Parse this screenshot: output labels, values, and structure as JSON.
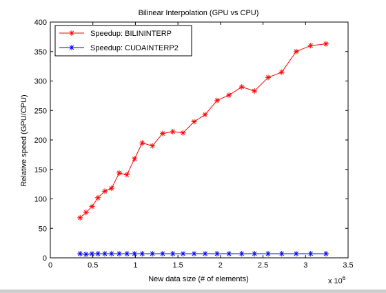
{
  "chart_data": {
    "type": "line",
    "title": "Bilinear Interpolation (GPU vs CPU)",
    "xlabel": "New data size (# of elements)",
    "ylabel": "Relative speed (GPU/CPU)",
    "x_multiplier_label": "x 10",
    "x_multiplier_exponent": "6",
    "xlim": [
      0,
      3.5
    ],
    "ylim": [
      0,
      400
    ],
    "xticks": [
      0,
      0.5,
      1,
      1.5,
      2,
      2.5,
      3,
      3.5
    ],
    "xtick_labels": [
      "0",
      "0.5",
      "1",
      "1.5",
      "2",
      "2.5",
      "3",
      "3.5"
    ],
    "yticks": [
      0,
      50,
      100,
      150,
      200,
      250,
      300,
      350,
      400
    ],
    "ytick_labels": [
      "0",
      "50",
      "100",
      "150",
      "200",
      "250",
      "300",
      "350",
      "400"
    ],
    "x": [
      0.35,
      0.42,
      0.49,
      0.56,
      0.64,
      0.72,
      0.81,
      0.9,
      0.99,
      1.08,
      1.2,
      1.32,
      1.44,
      1.56,
      1.69,
      1.82,
      1.96,
      2.1,
      2.25,
      2.4,
      2.56,
      2.72,
      2.89,
      3.06,
      3.24
    ],
    "series": [
      {
        "name": "Speedup: BILININTERP",
        "color": "#ff0000",
        "marker": "*",
        "values": [
          68,
          77,
          87,
          102,
          113,
          118,
          144,
          141,
          168,
          195,
          190,
          211,
          214,
          212,
          231,
          243,
          267,
          276,
          290,
          283,
          306,
          315,
          350,
          360,
          363
        ]
      },
      {
        "name": "Speedup: CUDAINTERP2",
        "color": "#0000ff",
        "marker": "*",
        "values": [
          7,
          6,
          7,
          7,
          7,
          7,
          7,
          7,
          7,
          7,
          7,
          7,
          7,
          7,
          7,
          7,
          7,
          7,
          7,
          7,
          7,
          7,
          7,
          7,
          7
        ]
      }
    ],
    "legend_position": "top-left",
    "grid": false
  }
}
